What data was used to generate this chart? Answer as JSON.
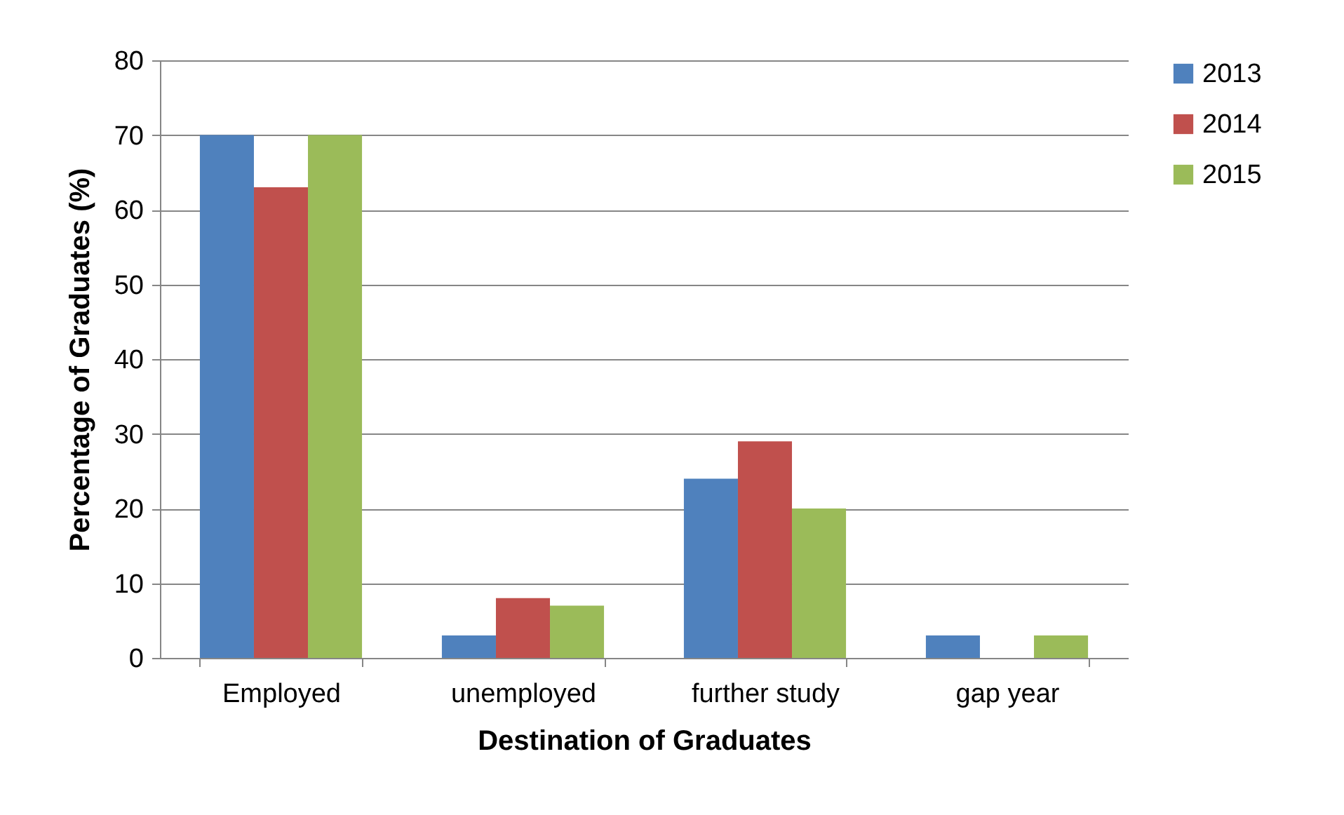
{
  "chart_data": {
    "type": "bar",
    "xlabel": "Destination of Graduates",
    "ylabel": "Percentage of Graduates (%)",
    "categories": [
      "Employed",
      "unemployed",
      "further study",
      "gap year"
    ],
    "series": [
      {
        "name": "2013",
        "color": "#4f81bd",
        "values": [
          70,
          3,
          24,
          3
        ]
      },
      {
        "name": "2014",
        "color": "#c0504d",
        "values": [
          63,
          8,
          29,
          0
        ]
      },
      {
        "name": "2015",
        "color": "#9bbb59",
        "values": [
          70,
          7,
          20,
          3
        ]
      }
    ],
    "ylim": [
      0,
      80
    ],
    "yticks": [
      0,
      10,
      20,
      30,
      40,
      50,
      60,
      70,
      80
    ],
    "grid": "y",
    "legend": "right"
  }
}
